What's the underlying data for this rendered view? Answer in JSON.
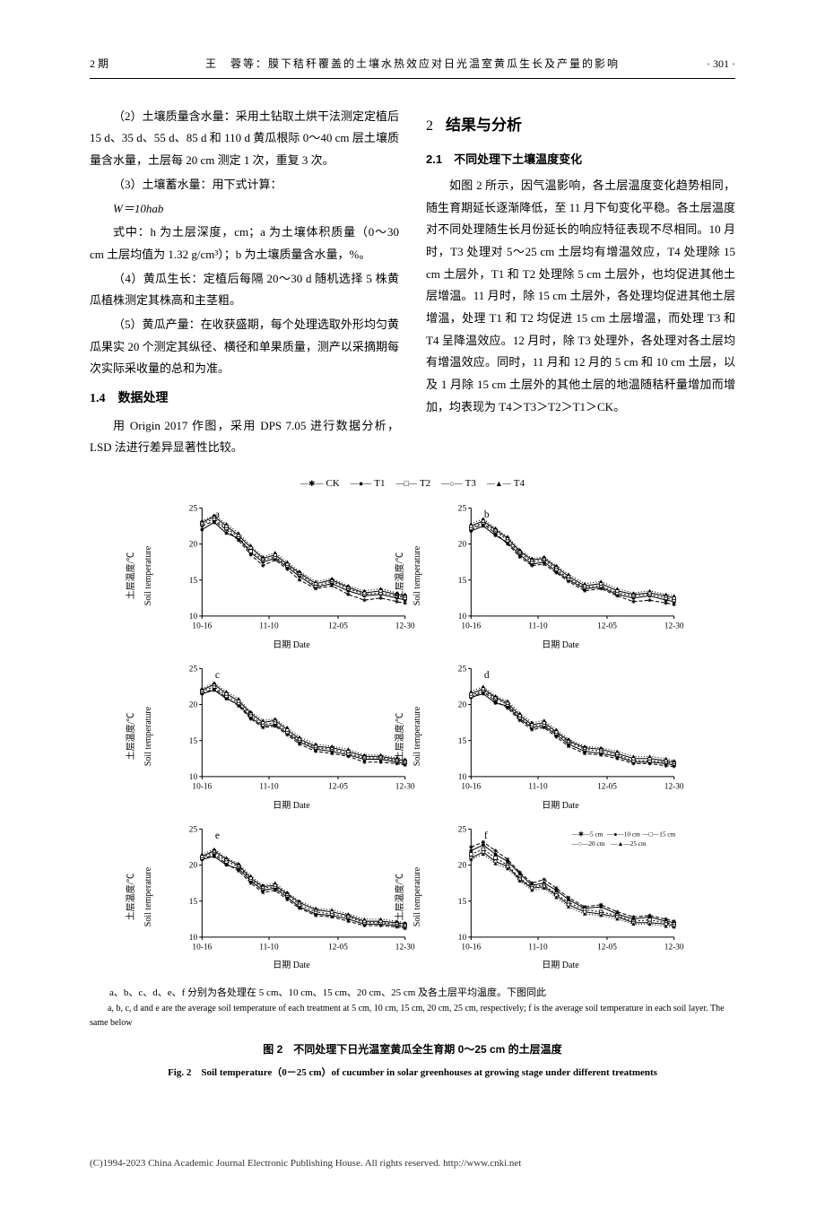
{
  "header": {
    "issue": "2 期",
    "running_title": "王　蓉等：膜下秸秆覆盖的土壤水热效应对日光温室黄瓜生长及产量的影响",
    "page": "· 301 ·"
  },
  "left_col": {
    "p1": "（2）土壤质量含水量：采用土钻取土烘干法测定定植后 15 d、35 d、55 d、85 d 和 110 d 黄瓜根际 0～40 cm 层土壤质量含水量，土层每 20 cm 测定 1 次，重复 3 次。",
    "p2": "（3）土壤蓄水量：用下式计算：",
    "formula": "W＝10hab",
    "p3": "式中：h 为土层深度，cm；a 为土壤体积质量（0～30 cm 土层均值为 1.32 g/cm³）；b 为土壤质量含水量，%。",
    "p4": "（4）黄瓜生长：定植后每隔 20～30 d 随机选择 5 株黄瓜植株测定其株高和主茎粗。",
    "p5": "（5）黄瓜产量：在收获盛期，每个处理选取外形均匀黄瓜果实 20 个测定其纵径、横径和单果质量，测产以采摘期每次实际采收量的总和为准。",
    "h14": "1.4　数据处理",
    "p6": "用 Origin 2017 作图，采用 DPS 7.05 进行数据分析，LSD 法进行差异显著性比较。"
  },
  "right_col": {
    "sec2_num": "2",
    "sec2_title": "结果与分析",
    "h21": "2.1　不同处理下土壤温度变化",
    "p1": "如图 2 所示，因气温影响，各土层温度变化趋势相同，随生育期延长逐渐降低，至 11 月下旬变化平稳。各土层温度对不同处理随生长月份延长的响应特征表现不尽相同。10 月时，T3 处理对 5～25 cm 土层均有增温效应，T4 处理除 15 cm 土层外，T1 和 T2 处理除 5 cm 土层外，也均促进其他土层增温。11 月时，除 15 cm 土层外，各处理均促进其他土层增温，处理 T1 和 T2 均促进 15 cm 土层增温，而处理 T3 和 T4 呈降温效应。12 月时，除 T3 处理外，各处理对各土层均有增温效应。同时，11 月和 12 月的 5 cm 和 10 cm 土层，以及 1 月除 15 cm 土层外的其他土层的地温随秸秆量增加而增加，均表现为 T4＞T3＞T2＞T1＞CK。"
  },
  "figure": {
    "legend_series": [
      {
        "name": "CK",
        "marker": "✱",
        "dash": "4 2",
        "color": "#000000"
      },
      {
        "name": "T1",
        "marker": "●",
        "dash": "0",
        "color": "#000000"
      },
      {
        "name": "T2",
        "marker": "□",
        "dash": "2 2",
        "color": "#000000"
      },
      {
        "name": "T3",
        "marker": "○",
        "dash": "0",
        "color": "#000000"
      },
      {
        "name": "T4",
        "marker": "▲",
        "dash": "1 2",
        "color": "#000000"
      }
    ],
    "panel_labels": [
      "a",
      "b",
      "c",
      "d",
      "e",
      "f"
    ],
    "ylim": [
      10,
      25
    ],
    "yticks": [
      10,
      15,
      20,
      25
    ],
    "xticks": [
      "10-16",
      "11-10",
      "12-05",
      "12-30"
    ],
    "ylabel_cn": "土层温度/℃",
    "ylabel_en": "Soil temperature",
    "xlabel_cn": "日期",
    "xlabel_en": "Date",
    "line_width": 1,
    "marker_size": 2.5,
    "axis_color": "#000000",
    "panels": {
      "a": {
        "label": "a",
        "x": [
          0,
          0.06,
          0.12,
          0.18,
          0.24,
          0.3,
          0.36,
          0.42,
          0.48,
          0.56,
          0.64,
          0.72,
          0.8,
          0.88,
          0.96,
          1.0
        ],
        "series": {
          "CK": [
            22.5,
            23.2,
            22.0,
            20.5,
            18.5,
            17.0,
            17.8,
            16.5,
            15.0,
            13.8,
            14.2,
            13.0,
            12.2,
            12.5,
            12.0,
            11.8
          ],
          "T1": [
            22.0,
            23.0,
            21.5,
            20.8,
            18.8,
            17.5,
            18.0,
            16.8,
            15.5,
            14.0,
            14.5,
            13.5,
            12.8,
            13.0,
            12.5,
            12.2
          ],
          "T2": [
            22.8,
            23.5,
            22.2,
            21.0,
            19.0,
            17.8,
            18.2,
            17.0,
            15.8,
            14.2,
            14.8,
            13.8,
            13.0,
            13.2,
            12.8,
            12.5
          ],
          "T3": [
            23.0,
            23.8,
            22.5,
            21.2,
            19.5,
            18.0,
            18.5,
            17.2,
            16.0,
            14.5,
            15.0,
            14.0,
            13.2,
            13.5,
            13.0,
            12.8
          ],
          "T4": [
            23.2,
            24.0,
            22.8,
            21.5,
            19.8,
            18.2,
            18.8,
            17.5,
            16.2,
            14.8,
            15.2,
            14.2,
            13.5,
            13.8,
            13.2,
            13.0
          ]
        }
      },
      "b": {
        "label": "b",
        "x": [
          0,
          0.06,
          0.12,
          0.18,
          0.24,
          0.3,
          0.36,
          0.42,
          0.48,
          0.56,
          0.64,
          0.72,
          0.8,
          0.88,
          0.96,
          1.0
        ],
        "series": {
          "CK": [
            22.0,
            22.8,
            21.5,
            20.0,
            18.2,
            17.0,
            17.2,
            16.0,
            14.8,
            13.5,
            13.8,
            12.8,
            12.0,
            12.2,
            11.8,
            11.6
          ],
          "T1": [
            21.8,
            22.5,
            21.2,
            20.2,
            18.5,
            17.2,
            17.5,
            16.2,
            15.0,
            13.8,
            14.0,
            13.0,
            12.5,
            12.8,
            12.2,
            12.0
          ],
          "T2": [
            22.2,
            23.0,
            21.8,
            20.5,
            18.8,
            17.5,
            17.8,
            16.5,
            15.2,
            14.0,
            14.2,
            13.2,
            12.8,
            13.0,
            12.5,
            12.2
          ],
          "T3": [
            22.5,
            23.2,
            22.0,
            20.8,
            19.0,
            17.8,
            18.0,
            16.8,
            15.5,
            14.2,
            14.5,
            13.5,
            13.0,
            13.2,
            12.8,
            12.5
          ],
          "T4": [
            22.8,
            23.5,
            22.2,
            21.0,
            19.2,
            18.0,
            18.2,
            17.0,
            15.8,
            14.5,
            14.8,
            13.8,
            13.2,
            13.5,
            13.0,
            12.8
          ]
        }
      },
      "c": {
        "label": "c",
        "x": [
          0,
          0.06,
          0.12,
          0.18,
          0.24,
          0.3,
          0.36,
          0.42,
          0.48,
          0.56,
          0.64,
          0.72,
          0.8,
          0.88,
          0.96,
          1.0
        ],
        "series": {
          "CK": [
            21.5,
            22.2,
            21.0,
            19.8,
            18.0,
            16.8,
            17.0,
            15.8,
            14.5,
            13.5,
            13.2,
            12.8,
            12.0,
            12.0,
            11.8,
            11.6
          ],
          "T1": [
            21.5,
            22.0,
            20.8,
            20.0,
            18.2,
            17.0,
            17.2,
            16.0,
            14.8,
            13.8,
            13.5,
            13.0,
            12.4,
            12.4,
            12.0,
            11.8
          ],
          "T2": [
            21.8,
            22.5,
            21.2,
            20.2,
            18.5,
            17.2,
            17.5,
            16.2,
            15.0,
            14.0,
            13.8,
            13.2,
            12.6,
            12.6,
            12.2,
            12.0
          ],
          "T3": [
            22.0,
            22.8,
            21.5,
            20.5,
            18.8,
            17.5,
            17.8,
            16.5,
            15.2,
            14.2,
            14.0,
            13.5,
            12.8,
            12.8,
            12.4,
            12.2
          ],
          "T4": [
            22.2,
            23.0,
            21.8,
            20.8,
            19.0,
            17.8,
            18.0,
            16.8,
            15.5,
            14.5,
            14.2,
            13.8,
            13.0,
            13.0,
            12.6,
            12.4
          ]
        }
      },
      "d": {
        "label": "d",
        "x": [
          0,
          0.06,
          0.12,
          0.18,
          0.24,
          0.3,
          0.36,
          0.42,
          0.48,
          0.56,
          0.64,
          0.72,
          0.8,
          0.88,
          0.96,
          1.0
        ],
        "series": {
          "CK": [
            21.0,
            21.8,
            20.5,
            19.5,
            17.8,
            16.5,
            16.8,
            15.5,
            14.2,
            13.2,
            13.0,
            12.5,
            11.8,
            11.8,
            11.5,
            11.4
          ],
          "T1": [
            21.0,
            21.5,
            20.2,
            19.8,
            18.0,
            16.8,
            17.0,
            15.8,
            14.5,
            13.5,
            13.2,
            12.8,
            12.0,
            12.0,
            11.8,
            11.6
          ],
          "T2": [
            21.2,
            22.0,
            20.8,
            20.0,
            18.2,
            17.0,
            17.2,
            16.0,
            14.8,
            13.8,
            13.5,
            13.0,
            12.2,
            12.2,
            12.0,
            11.8
          ],
          "T3": [
            21.5,
            22.2,
            21.0,
            20.2,
            18.5,
            17.2,
            17.5,
            16.2,
            15.0,
            14.0,
            13.8,
            13.2,
            12.5,
            12.5,
            12.2,
            12.0
          ],
          "T4": [
            21.8,
            22.5,
            21.2,
            20.5,
            18.8,
            17.5,
            17.8,
            16.5,
            15.2,
            14.2,
            14.0,
            13.5,
            12.8,
            12.8,
            12.5,
            12.2
          ]
        }
      },
      "e": {
        "label": "e",
        "x": [
          0,
          0.06,
          0.12,
          0.18,
          0.24,
          0.3,
          0.36,
          0.42,
          0.48,
          0.56,
          0.64,
          0.72,
          0.8,
          0.88,
          0.96,
          1.0
        ],
        "series": {
          "CK": [
            20.8,
            21.5,
            20.2,
            19.2,
            17.5,
            16.2,
            16.5,
            15.2,
            14.0,
            13.0,
            12.8,
            12.2,
            11.6,
            11.6,
            11.4,
            11.2
          ],
          "T1": [
            20.8,
            21.2,
            20.0,
            19.5,
            17.8,
            16.5,
            16.8,
            15.5,
            14.2,
            13.2,
            13.0,
            12.5,
            11.8,
            11.8,
            11.6,
            11.4
          ],
          "T2": [
            21.0,
            21.8,
            20.5,
            19.8,
            18.0,
            16.8,
            17.0,
            15.8,
            14.5,
            13.5,
            13.2,
            12.8,
            12.0,
            12.0,
            11.8,
            11.6
          ],
          "T3": [
            21.2,
            22.0,
            20.8,
            20.0,
            18.2,
            17.0,
            17.2,
            16.0,
            14.8,
            13.8,
            13.5,
            13.0,
            12.2,
            12.2,
            12.0,
            11.8
          ],
          "T4": [
            21.5,
            22.2,
            21.0,
            20.2,
            18.5,
            17.2,
            17.5,
            16.2,
            15.0,
            14.0,
            13.8,
            13.2,
            12.5,
            12.5,
            12.2,
            12.0
          ]
        }
      },
      "f": {
        "label": "f",
        "legend": [
          {
            "name": "5 cm",
            "marker": "✱"
          },
          {
            "name": "10 cm",
            "marker": "●"
          },
          {
            "name": "15 cm",
            "marker": "□"
          },
          {
            "name": "20 cm",
            "marker": "○"
          },
          {
            "name": "25 cm",
            "marker": "▲"
          }
        ],
        "x": [
          0,
          0.06,
          0.12,
          0.18,
          0.24,
          0.3,
          0.36,
          0.42,
          0.48,
          0.56,
          0.64,
          0.72,
          0.8,
          0.88,
          0.96,
          1.0
        ],
        "series": {
          "5 cm": [
            22.5,
            23.2,
            22.0,
            20.8,
            19.0,
            17.5,
            18.0,
            16.8,
            15.5,
            14.2,
            14.5,
            13.5,
            12.8,
            13.0,
            12.5,
            12.2
          ],
          "10 cm": [
            22.0,
            22.8,
            21.5,
            20.5,
            18.8,
            17.2,
            17.5,
            16.5,
            15.2,
            14.0,
            14.2,
            13.2,
            12.5,
            12.8,
            12.2,
            12.0
          ],
          "15 cm": [
            21.5,
            22.2,
            21.0,
            20.0,
            18.2,
            17.0,
            17.2,
            16.0,
            14.8,
            13.8,
            13.5,
            13.0,
            12.2,
            12.4,
            12.0,
            11.8
          ],
          "20 cm": [
            21.0,
            21.8,
            20.5,
            19.8,
            18.0,
            16.8,
            17.0,
            15.8,
            14.5,
            13.5,
            13.2,
            12.8,
            12.0,
            12.0,
            11.8,
            11.6
          ],
          "25 cm": [
            20.8,
            21.5,
            20.2,
            19.5,
            17.8,
            16.5,
            16.8,
            15.5,
            14.2,
            13.2,
            13.0,
            12.5,
            11.8,
            11.8,
            11.5,
            11.4
          ]
        }
      }
    },
    "note_cn": "a、b、c、d、e、f 分别为各处理在 5 cm、10 cm、15 cm、20 cm、25 cm 及各土层平均温度。下图同此",
    "note_en": "a, b, c, d and e are the average soil temperature of each treatment at 5 cm, 10 cm, 15 cm, 20 cm, 25 cm, respectively; f is the average soil temperature in each soil layer. The same below",
    "caption_cn": "图 2　不同处理下日光温室黄瓜全生育期 0～25 cm 的土层温度",
    "caption_en": "Fig. 2　Soil temperature（0－25 cm）of cucumber in solar greenhouses at growing stage under different treatments"
  },
  "footer": {
    "text": "(C)1994-2023 China Academic Journal Electronic Publishing House. All rights reserved.    http://www.cnki.net"
  }
}
